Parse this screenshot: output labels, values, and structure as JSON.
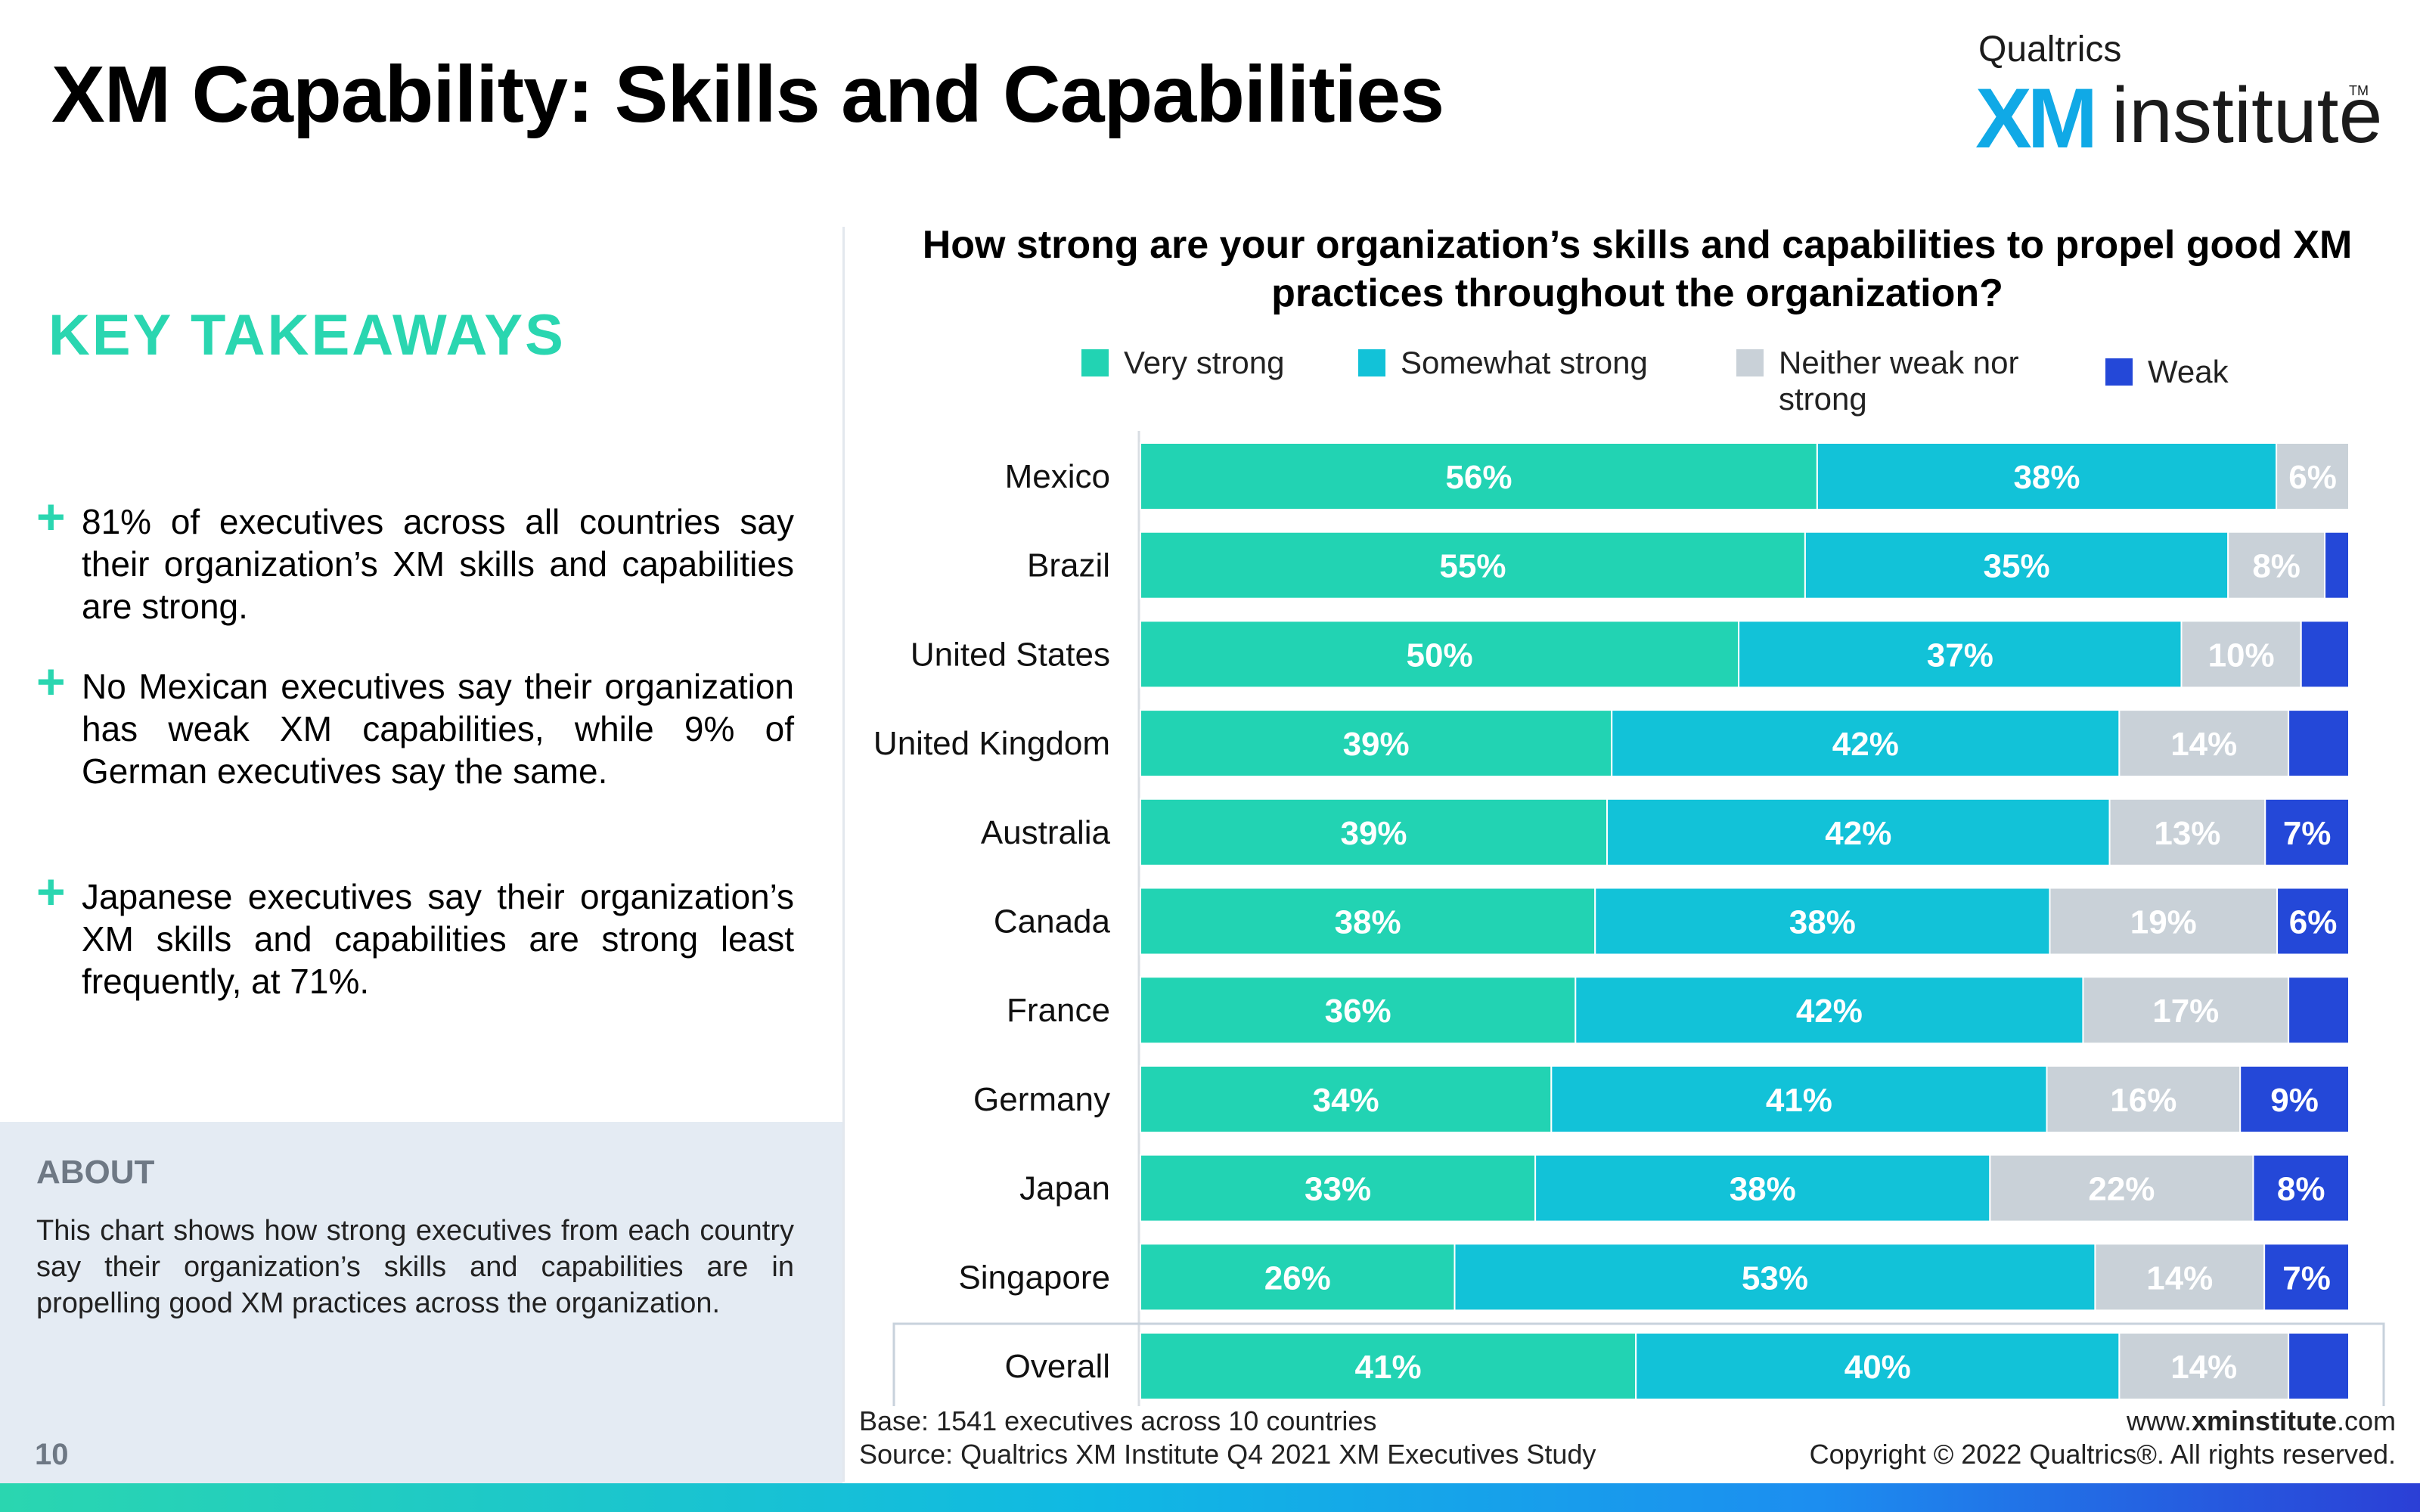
{
  "page": {
    "title": "XM Capability: Skills and Capabilities",
    "page_number": "10"
  },
  "logo": {
    "top": "Qualtrics",
    "xm": "XM",
    "institute": "institute",
    "tm": "TM"
  },
  "key_takeaways": {
    "title": "KEY TAKEAWAYS",
    "items": [
      "81% of executives across all countries say their organization’s XM skills and capabilities are strong.",
      "No Mexican executives say their organization has weak XM capabilities, while 9% of German executives say the same.",
      "Japanese executives say their organization’s XM skills and capabilities are strong least frequently, at 71%."
    ]
  },
  "about": {
    "title": "ABOUT",
    "text": "This chart shows how strong executives from each country say their organization’s skills and capabilities are in propelling good XM practices across the organization."
  },
  "footer": {
    "base": "Base: 1541 executives across 10 countries",
    "source": "Source: Qualtrics XM Institute Q4 2021 XM Executives Study",
    "url_prefix": "www.",
    "url_bold": "xminstitute",
    "url_suffix": ".com",
    "copyright": "Copyright © 2022 Qualtrics®. All rights reserved."
  },
  "chart_data": {
    "type": "bar",
    "orientation": "horizontal-stacked-100",
    "title": "How strong are your organization’s skills and capabilities to propel good XM practices throughout the organization?",
    "categories": [
      "Mexico",
      "Brazil",
      "United States",
      "United Kingdom",
      "Australia",
      "Canada",
      "France",
      "Germany",
      "Japan",
      "Singapore",
      "Overall"
    ],
    "series": [
      {
        "name": "Very strong",
        "color": "#22d3b3",
        "values": [
          56,
          55,
          50,
          39,
          39,
          38,
          36,
          34,
          33,
          26,
          41
        ]
      },
      {
        "name": "Somewhat strong",
        "color": "#12c2d8",
        "values": [
          38,
          35,
          37,
          42,
          42,
          38,
          42,
          41,
          38,
          53,
          40
        ]
      },
      {
        "name": "Neither weak nor strong",
        "color": "#c9d1d8",
        "values": [
          6,
          8,
          10,
          14,
          13,
          19,
          17,
          16,
          22,
          14,
          14
        ]
      },
      {
        "name": "Weak",
        "color": "#2448d8",
        "values": [
          0,
          2,
          4,
          5,
          7,
          6,
          5,
          9,
          8,
          7,
          5
        ]
      }
    ],
    "labels": [
      [
        "56%",
        "38%",
        "6%",
        ""
      ],
      [
        "55%",
        "35%",
        "8%",
        ""
      ],
      [
        "50%",
        "37%",
        "10%",
        ""
      ],
      [
        "39%",
        "42%",
        "14%",
        ""
      ],
      [
        "39%",
        "42%",
        "13%",
        "7%"
      ],
      [
        "38%",
        "38%",
        "19%",
        "6%"
      ],
      [
        "36%",
        "42%",
        "17%",
        ""
      ],
      [
        "34%",
        "41%",
        "16%",
        "9%"
      ],
      [
        "33%",
        "38%",
        "22%",
        "8%"
      ],
      [
        "26%",
        "53%",
        "14%",
        "7%"
      ],
      [
        "41%",
        "40%",
        "14%",
        ""
      ]
    ],
    "legend": {
      "placement": "top",
      "labels": [
        "Very strong",
        "Somewhat strong",
        "Neither weak nor",
        "strong",
        "Weak"
      ]
    },
    "highlight_row": "Overall",
    "grid": false
  }
}
